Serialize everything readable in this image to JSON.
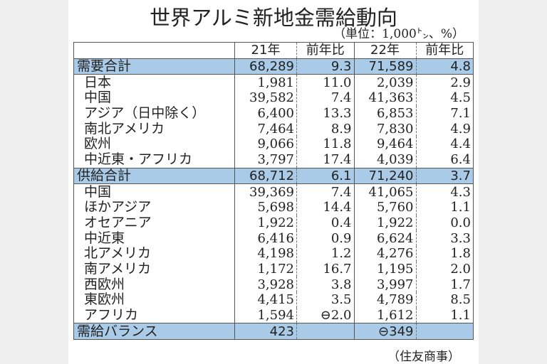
{
  "title": "世界アルミ新地金需給動向",
  "unit": "（単位：1,000㌧、%）",
  "columns": [
    "",
    "21年",
    "前年比",
    "22年",
    "前年比"
  ],
  "rows": [
    {
      "label": "需要合計",
      "total": true,
      "v21": "68,289",
      "yoy21": "9.3",
      "v22": "71,589",
      "yoy22": "4.8"
    },
    {
      "label": "日本",
      "v21": "1,981",
      "yoy21": "11.0",
      "v22": "2,039",
      "yoy22": "2.9"
    },
    {
      "label": "中国",
      "v21": "39,582",
      "yoy21": "7.4",
      "v22": "41,363",
      "yoy22": "4.5"
    },
    {
      "label": "アジア（日中除く）",
      "v21": "6,400",
      "yoy21": "13.3",
      "v22": "6,853",
      "yoy22": "7.1"
    },
    {
      "label": "南北アメリカ",
      "v21": "7,464",
      "yoy21": "8.9",
      "v22": "7,830",
      "yoy22": "4.9"
    },
    {
      "label": "欧州",
      "v21": "9,066",
      "yoy21": "11.8",
      "v22": "9,464",
      "yoy22": "4.4"
    },
    {
      "label": "中近東・アフリカ",
      "v21": "3,797",
      "yoy21": "17.4",
      "v22": "4,039",
      "yoy22": "6.4"
    },
    {
      "label": "供給合計",
      "total": true,
      "v21": "68,712",
      "yoy21": "6.1",
      "v22": "71,240",
      "yoy22": "3.7"
    },
    {
      "label": "中国",
      "v21": "39,369",
      "yoy21": "7.4",
      "v22": "41,065",
      "yoy22": "4.3"
    },
    {
      "label": "ほかアジア",
      "v21": "5,698",
      "yoy21": "14.4",
      "v22": "5,760",
      "yoy22": "1.1"
    },
    {
      "label": "オセアニア",
      "v21": "1,922",
      "yoy21": "0.4",
      "v22": "1,922",
      "yoy22": "0.0"
    },
    {
      "label": "中近東",
      "v21": "6,416",
      "yoy21": "0.9",
      "v22": "6,624",
      "yoy22": "3.3"
    },
    {
      "label": "北アメリカ",
      "v21": "4,198",
      "yoy21": "1.2",
      "v22": "4,276",
      "yoy22": "1.8"
    },
    {
      "label": "南アメリカ",
      "v21": "1,172",
      "yoy21": "16.7",
      "v22": "1,195",
      "yoy22": "2.0"
    },
    {
      "label": "西欧州",
      "v21": "3,928",
      "yoy21": "3.8",
      "v22": "3,997",
      "yoy22": "1.7"
    },
    {
      "label": "東欧州",
      "v21": "4,415",
      "yoy21": "3.5",
      "v22": "4,789",
      "yoy22": "8.5"
    },
    {
      "label": "アフリカ",
      "v21": "1,594",
      "yoy21": "⊖2.0",
      "v22": "1,612",
      "yoy22": "1.1"
    },
    {
      "label": "需給バランス",
      "total": true,
      "v21": "423",
      "yoy21": "",
      "v22": "⊖349",
      "yoy22": ""
    }
  ],
  "source": "（住友商事）",
  "colors": {
    "total_row_bg": "#a9cbe8"
  }
}
